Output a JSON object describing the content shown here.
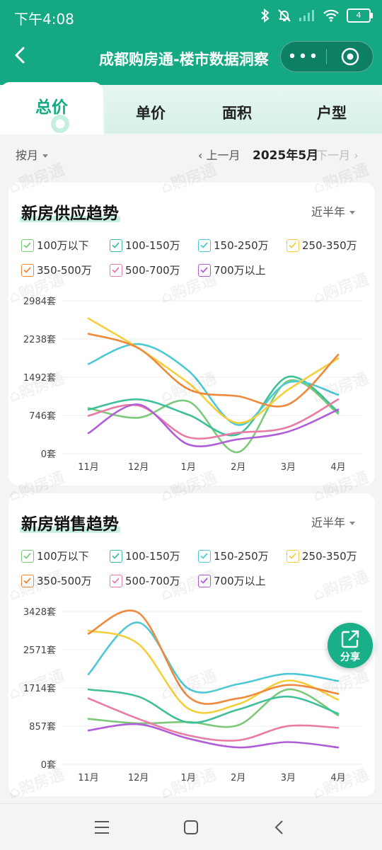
{
  "status": {
    "time": "下午4:08",
    "battery": "4"
  },
  "nav": {
    "title": "成都购房通-楼市数据洞察",
    "more": "•••"
  },
  "tabs": [
    {
      "label": "总价",
      "active": true
    },
    {
      "label": "单价",
      "active": false
    },
    {
      "label": "面积",
      "active": false
    },
    {
      "label": "户型",
      "active": false
    }
  ],
  "filter": {
    "by": "按月",
    "prev": "上一月",
    "current": "2025年5月",
    "next": "下一月"
  },
  "legend": [
    {
      "label": "100万以下",
      "color": "#7cc97a"
    },
    {
      "label": "100-150万",
      "color": "#3fbf9a"
    },
    {
      "label": "150-250万",
      "color": "#4cc9d4"
    },
    {
      "label": "250-350万",
      "color": "#f5cf3b"
    },
    {
      "label": "350-500万",
      "color": "#ef8a3c"
    },
    {
      "label": "500-700万",
      "color": "#e97ca5"
    },
    {
      "label": "700万以上",
      "color": "#b05ed8"
    }
  ],
  "supply": {
    "title": "新房供应趋势",
    "range": "近半年",
    "chart_data": {
      "type": "line",
      "categories": [
        "11月",
        "12月",
        "1月",
        "2月",
        "3月",
        "4月"
      ],
      "y_ticks": [
        "0套",
        "746套",
        "1492套",
        "2238套",
        "2984套"
      ],
      "ylim": [
        0,
        2984
      ],
      "series": [
        {
          "name": "100万以下",
          "values": [
            890,
            700,
            1020,
            30,
            1420,
            780
          ]
        },
        {
          "name": "100-150万",
          "values": [
            860,
            1060,
            760,
            380,
            1500,
            820
          ]
        },
        {
          "name": "150-250万",
          "values": [
            1750,
            2140,
            1620,
            560,
            1390,
            1150
          ]
        },
        {
          "name": "250-350万",
          "values": [
            2640,
            2060,
            1380,
            600,
            1250,
            1860
          ]
        },
        {
          "name": "350-500万",
          "values": [
            2340,
            2060,
            1260,
            1120,
            960,
            1930
          ]
        },
        {
          "name": "500-700万",
          "values": [
            740,
            940,
            320,
            410,
            520,
            1060
          ]
        },
        {
          "name": "700万以上",
          "values": [
            400,
            960,
            180,
            280,
            430,
            860
          ]
        }
      ]
    }
  },
  "sales": {
    "title": "新房销售趋势",
    "range": "近半年",
    "chart_data": {
      "type": "line",
      "categories": [
        "11月",
        "12月",
        "1月",
        "2月",
        "3月",
        "4月"
      ],
      "y_ticks": [
        "0套",
        "857套",
        "1714套",
        "2571套",
        "3428套"
      ],
      "ylim": [
        0,
        3428
      ],
      "series": [
        {
          "name": "100万以下",
          "values": [
            1020,
            920,
            950,
            880,
            1680,
            1100
          ]
        },
        {
          "name": "100-150万",
          "values": [
            1680,
            1520,
            940,
            1230,
            1520,
            1140
          ]
        },
        {
          "name": "150-250万",
          "values": [
            2020,
            3180,
            1700,
            1800,
            2030,
            1870
          ]
        },
        {
          "name": "250-350万",
          "values": [
            3000,
            2700,
            1250,
            1350,
            1880,
            1450
          ]
        },
        {
          "name": "350-500万",
          "values": [
            2930,
            3400,
            1520,
            1480,
            1780,
            1580
          ]
        },
        {
          "name": "500-700万",
          "values": [
            1480,
            1020,
            650,
            540,
            860,
            820
          ]
        },
        {
          "name": "700万以上",
          "values": [
            760,
            900,
            580,
            380,
            500,
            380
          ]
        }
      ]
    }
  },
  "share": {
    "label": "分享"
  },
  "watermark": "购房通"
}
